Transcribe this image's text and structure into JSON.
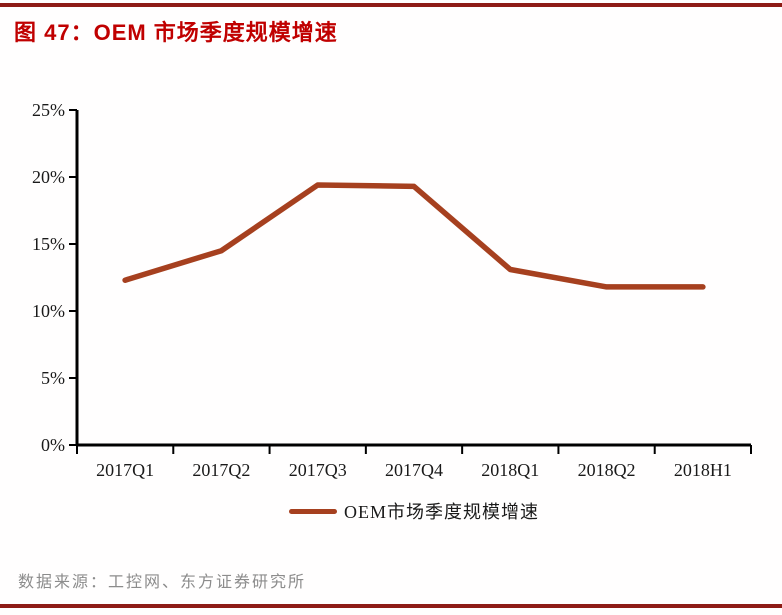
{
  "header": {
    "title": "图 47：OEM 市场季度规模增速"
  },
  "chart_data": {
    "type": "line",
    "title": "图 47：OEM 市场季度规模增速",
    "categories": [
      "2017Q1",
      "2017Q2",
      "2017Q3",
      "2017Q4",
      "2018Q1",
      "2018Q2",
      "2018H1"
    ],
    "series": [
      {
        "name": "OEM市场季度规模增速",
        "values": [
          12.3,
          14.5,
          19.4,
          19.3,
          13.1,
          11.8,
          11.8
        ]
      }
    ],
    "xlabel": "",
    "ylabel": "",
    "ylim": [
      0,
      25
    ],
    "ytick_step": 5,
    "ytick_labels": [
      "0%",
      "5%",
      "10%",
      "15%",
      "20%",
      "25%"
    ],
    "grid": false,
    "legend_position": "bottom"
  },
  "footer": {
    "source": "数据来源：工控网、东方证券研究所"
  },
  "colors": {
    "line": "#A6401F",
    "title_red": "#C00000",
    "rule_red": "#8E1C16",
    "axis_black": "#000000",
    "tick_label": "#1a1a1a",
    "source_gray": "#8C8C8C"
  }
}
